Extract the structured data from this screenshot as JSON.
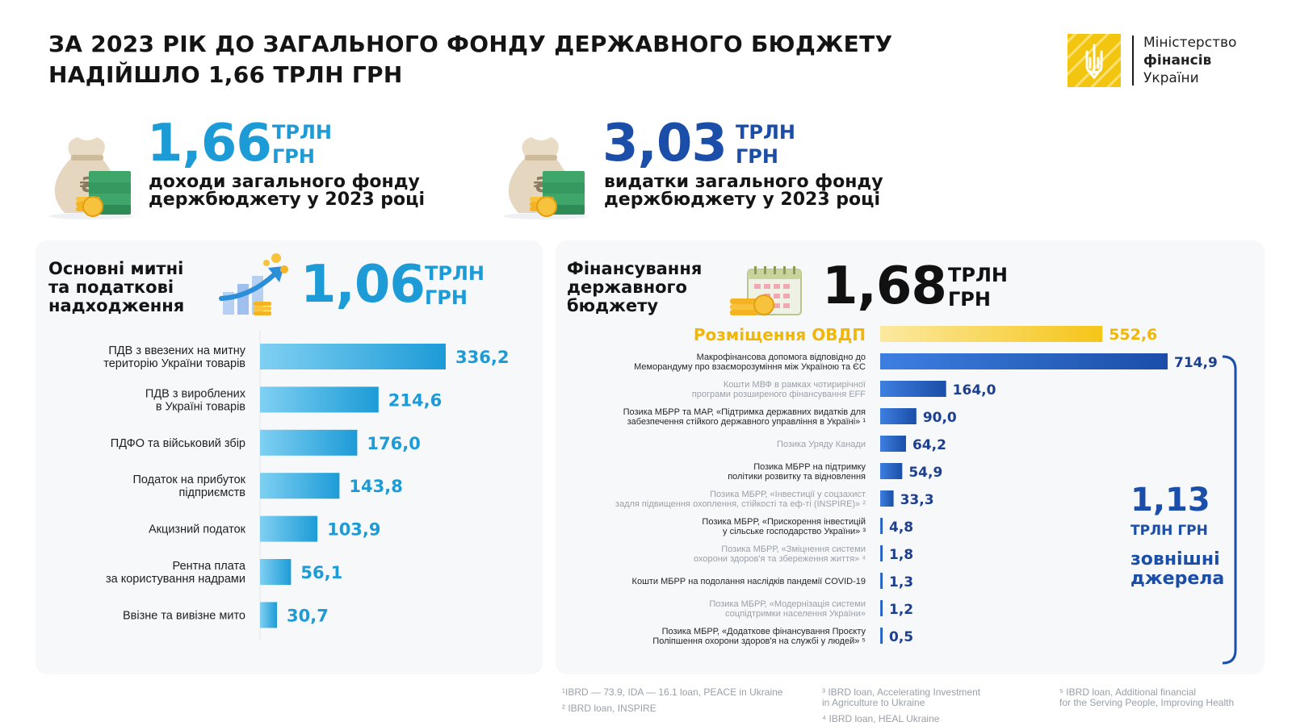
{
  "title": {
    "line1": "ЗА 2023 РІК ДО ЗАГАЛЬНОГО ФОНДУ ДЕРЖАВНОГО БЮДЖЕТУ",
    "line2": "НАДІЙШЛО 1,66 ТРЛН ГРН"
  },
  "logo": {
    "line1": "Міністерство",
    "line2": "фінансів",
    "line3": "України"
  },
  "kpis": {
    "revenue": {
      "value": "1,66",
      "unit1": "ТРЛН",
      "unit2": "ГРН",
      "desc1": "доходи загального фонду",
      "desc2": "держбюджету у 2023 році",
      "color": "#1d9bd7"
    },
    "expense": {
      "value": "3,03",
      "unit1": "ТРЛН",
      "unit2": "ГРН",
      "desc1": "видатки загального фонду",
      "desc2": "держбюджету у 2023 році",
      "color": "#1b4ea8"
    }
  },
  "tax_section": {
    "title1": "Основні митні",
    "title2": "та податкові",
    "title3": "надходження",
    "value": "1,06",
    "unit1": "ТРЛН",
    "unit2": "ГРН"
  },
  "finance_section": {
    "title1": "Фінансування",
    "title2": "державного",
    "title3": "бюджету",
    "value": "1,68",
    "unit1": "ТРЛН",
    "unit2": "ГРН",
    "external_value": "1,13",
    "external_unit": "ТРЛН ГРН",
    "external_label1": "зовнішні",
    "external_label2": "джерела"
  },
  "chart_data": [
    {
      "type": "bar",
      "orientation": "horizontal",
      "title": "Основні митні та податкові надходження",
      "categories": [
        [
          "ПДВ з ввезених на митну",
          "територію України товарів"
        ],
        [
          "ПДВ з вироблених",
          "в Україні товарів"
        ],
        [
          "ПДФО та військовий збір"
        ],
        [
          "Податок на прибуток",
          "підприємств"
        ],
        [
          "Акцизний податок"
        ],
        [
          "Рентна плата",
          "за користування надрами"
        ],
        [
          "Ввізне та вивізне мито"
        ]
      ],
      "values": [
        336.2,
        214.6,
        176.0,
        143.8,
        103.9,
        56.1,
        30.7
      ],
      "value_labels": [
        "336,2",
        "214,6",
        "176,0",
        "143,8",
        "103,9",
        "56,1",
        "30,7"
      ],
      "color": "#1d9bd7"
    },
    {
      "type": "bar",
      "orientation": "horizontal",
      "title": "Фінансування державного бюджету",
      "categories": [
        [
          "Розміщення ОВДП"
        ],
        [
          "Макрофінансова допомога відповідно до",
          "Меморандуму про взаєморозуміння між Україною та ЄС"
        ],
        [
          "Кошти МВФ в рамках чотирирічної",
          "програми розширеного фінансування EFF"
        ],
        [
          "Позика МБРР та МАР, «Підтримка державних видатків для",
          "забезпечення стійкого державного управління в Україні» ¹"
        ],
        [
          "Позика Уряду Канади"
        ],
        [
          "Позика МБРР на підтримку",
          "політики розвитку та відновлення"
        ],
        [
          "Позика МБРР, «Інвестиції у соцзахист",
          "задля підвищення охоплення, стійкості та еф-ті (INSPIRE)» ²"
        ],
        [
          "Позика МБРР, «Прискорення інвестицій",
          "у сільське господарство України» ³"
        ],
        [
          "Позика МБРР, «Зміцнення системи",
          "охорони здоров'я та збереження життя» ⁴"
        ],
        [
          "Кошти МБРР на подолання наслідків пандемії COVID-19"
        ],
        [
          "Позика МБРР, «Модернізація системи",
          "соцпідтримки населення України»"
        ],
        [
          "Позика МБРР, «Додаткове фінансування Проєкту",
          "Поліпшення охорони здоров'я на службі у людей» ⁵"
        ]
      ],
      "values": [
        552.6,
        714.9,
        164.0,
        90.0,
        64.2,
        54.9,
        33.3,
        4.8,
        1.8,
        1.3,
        1.2,
        0.5
      ],
      "value_labels": [
        "552,6",
        "714,9",
        "164,0",
        "90,0",
        "64,2",
        "54,9",
        "33,3",
        "4,8",
        "1,8",
        "1,3",
        "1,2",
        "0,5"
      ],
      "label_style": [
        "highlight",
        "dark",
        "light",
        "dark",
        "light",
        "dark",
        "light",
        "dark",
        "light",
        "dark",
        "light",
        "dark"
      ],
      "colors": {
        "highlight": "#f5c518",
        "series": "#1b4ea8"
      }
    }
  ],
  "footnotes": {
    "f1": "¹IBRD — 73.9, IDA — 16.1 loan, PEACE in Ukraine",
    "f2": "² IBRD loan, INSPIRE",
    "f3a": "³ IBRD loan, Accelerating Investment",
    "f3b": "in Agriculture to Ukraine",
    "f4": "⁴ IBRD loan, HEAL Ukraine",
    "f5a": "⁵ IBRD loan, Additional financial",
    "f5b": "for the Serving People, Improving Health"
  }
}
